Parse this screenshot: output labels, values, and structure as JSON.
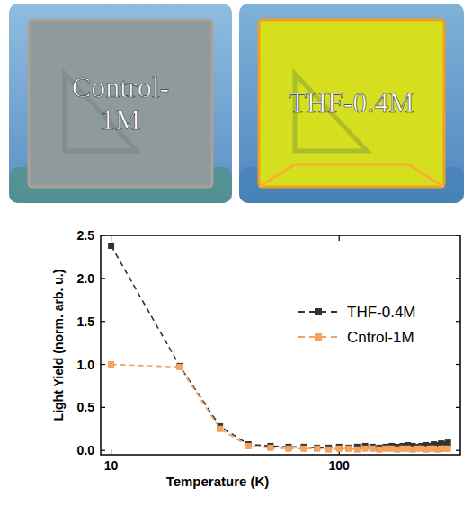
{
  "photos": [
    {
      "label": "Control-1M"
    },
    {
      "label": "THF-0.4M"
    }
  ],
  "chart_data": {
    "type": "line",
    "x_label": "Temperature (K)",
    "y_label": "Light Yield (norm. arb. u.)",
    "log": "x",
    "xlim": [
      9,
      340
    ],
    "xticks": [
      10,
      100
    ],
    "ylim": [
      -0.05,
      2.5
    ],
    "yticks": [
      {
        "value": 0,
        "label": "0.0"
      },
      {
        "value": 0.5,
        "label": "0.5"
      },
      {
        "value": 1,
        "label": "1.0"
      },
      {
        "value": 1.5,
        "label": "1.5"
      },
      {
        "value": 2,
        "label": "2.0"
      },
      {
        "value": 2.5,
        "label": "2.5"
      }
    ],
    "legend": "upper right",
    "x": [
      10,
      20,
      30,
      40,
      50,
      60,
      70,
      80,
      90,
      100,
      110,
      120,
      130,
      140,
      150,
      160,
      170,
      180,
      190,
      200,
      210,
      220,
      230,
      240,
      250,
      260,
      270,
      280,
      290,
      300
    ],
    "series": [
      {
        "name": "THF-0.4M",
        "color": "#333333",
        "marker": "square",
        "line_style": "dashed",
        "values": [
          2.38,
          0.98,
          0.28,
          0.07,
          0.05,
          0.04,
          0.04,
          0.03,
          0.03,
          0.04,
          0.03,
          0.04,
          0.05,
          0.04,
          0.03,
          0.04,
          0.05,
          0.04,
          0.05,
          0.06,
          0.05,
          0.04,
          0.05,
          0.06,
          0.05,
          0.07,
          0.06,
          0.08,
          0.07,
          0.09
        ]
      },
      {
        "name": "Cntrol-1M",
        "color": "#f2a35e",
        "marker": "square",
        "line_style": "dashed",
        "values": [
          1.0,
          0.97,
          0.25,
          0.05,
          0.03,
          0.02,
          0.02,
          0.02,
          0.01,
          0.02,
          0.02,
          0.01,
          0.02,
          0.02,
          0.01,
          0.02,
          0.02,
          0.01,
          0.02,
          0.02,
          0.01,
          0.02,
          0.02,
          0.01,
          0.02,
          0.02,
          0.01,
          0.02,
          0.02,
          0.02
        ]
      }
    ]
  }
}
